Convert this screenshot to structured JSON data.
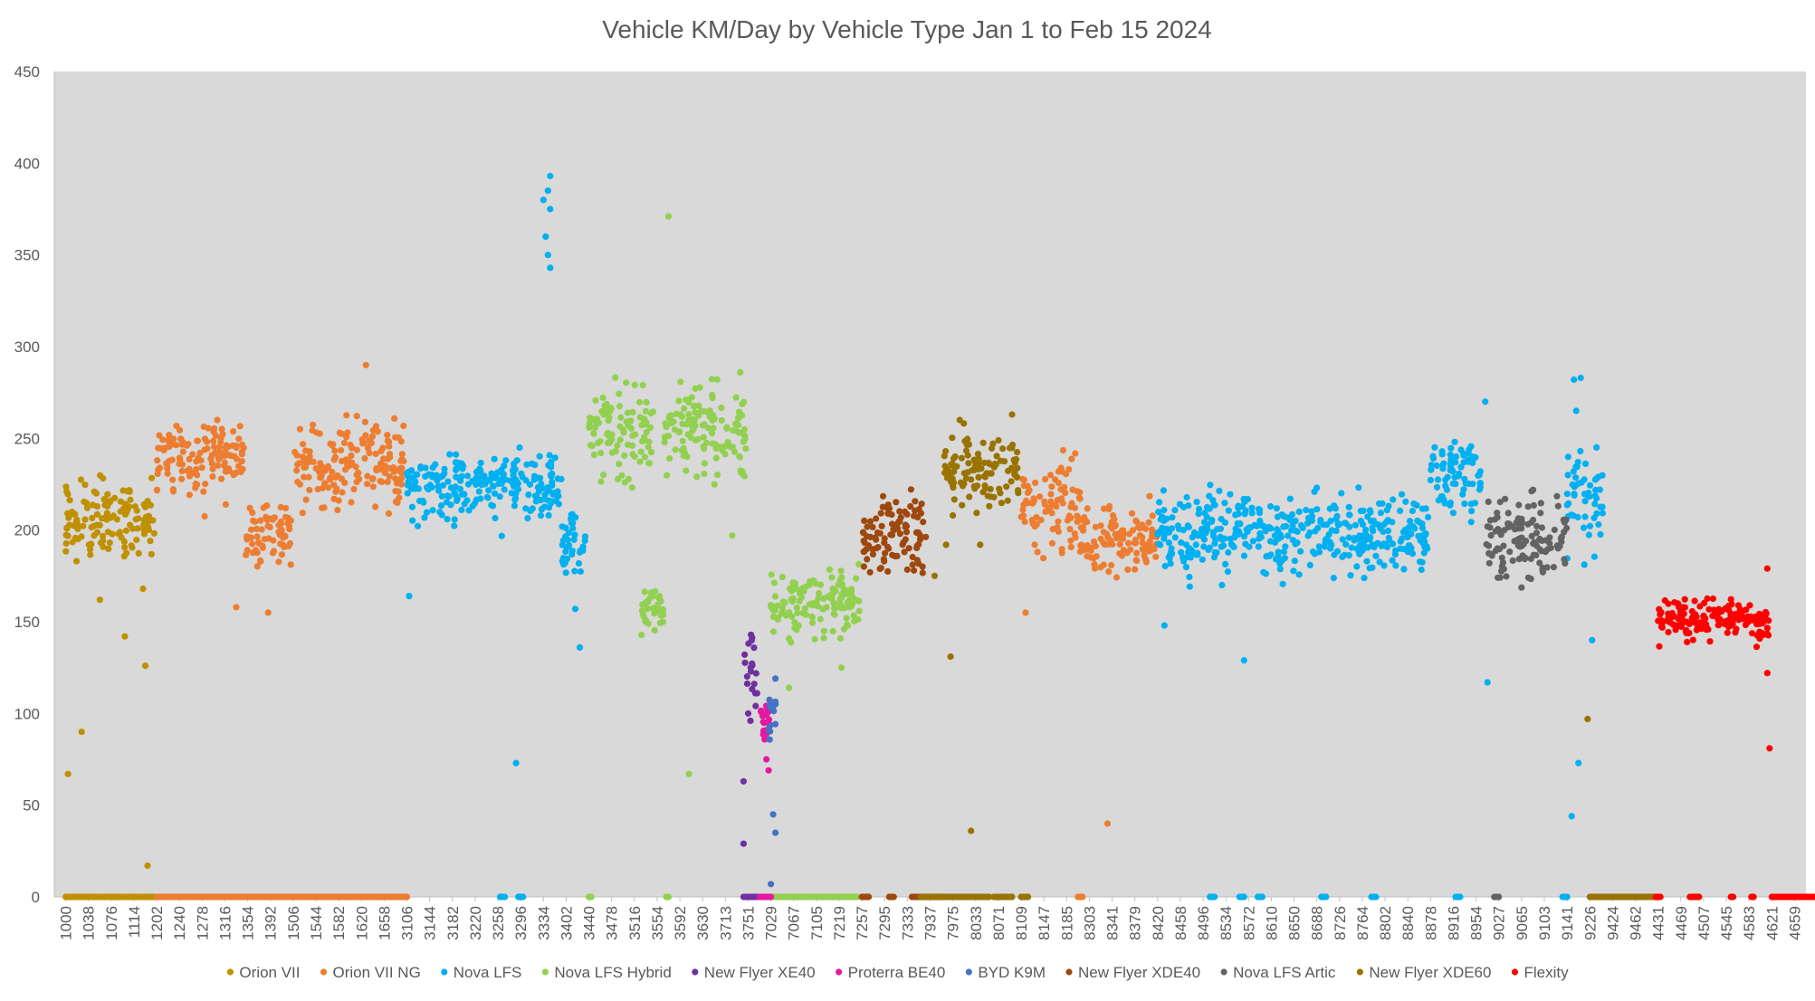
{
  "chart_data": {
    "type": "scatter",
    "title": "Vehicle KM/Day by Vehicle Type Jan 1 to Feb 15 2024",
    "xlabel": "",
    "ylabel": "",
    "ylim": [
      0,
      450
    ],
    "yticks": [
      0,
      50,
      100,
      150,
      200,
      250,
      300,
      350,
      400,
      450
    ],
    "plot_background": "#d9d9d9",
    "grid": false,
    "legend_position": "bottom",
    "x_categories": [
      "1000",
      "1038",
      "1076",
      "1114",
      "1202",
      "1240",
      "1278",
      "1316",
      "1354",
      "1392",
      "1506",
      "1544",
      "1582",
      "1620",
      "1658",
      "3106",
      "3144",
      "3182",
      "3220",
      "3258",
      "3296",
      "3334",
      "3402",
      "3440",
      "3478",
      "3516",
      "3554",
      "3592",
      "3630",
      "3713",
      "3751",
      "7029",
      "7067",
      "7105",
      "7219",
      "7257",
      "7295",
      "7333",
      "7937",
      "7975",
      "8033",
      "8071",
      "8109",
      "8147",
      "8185",
      "8303",
      "8341",
      "8379",
      "8420",
      "8458",
      "8496",
      "8534",
      "8572",
      "8610",
      "8650",
      "8688",
      "8726",
      "8764",
      "8802",
      "8840",
      "8878",
      "8916",
      "8954",
      "9027",
      "9065",
      "9103",
      "9141",
      "9226",
      "9424",
      "9462",
      "4431",
      "4469",
      "4507",
      "4545",
      "4583",
      "4621",
      "4659"
    ],
    "series": [
      {
        "name": "Orion VII",
        "color": "#bf9000",
        "x_range": [
          0,
          3.9
        ],
        "center": 205,
        "spread": 18,
        "extra_points": [
          [
            0.1,
            67
          ],
          [
            0.7,
            90
          ],
          [
            3.6,
            17
          ],
          [
            3.5,
            126
          ],
          [
            2.6,
            142
          ],
          [
            1.5,
            162
          ],
          [
            3.4,
            168
          ]
        ],
        "zero_ranges": [
          [
            0,
            3.9
          ]
        ]
      },
      {
        "name": "Orion VII NG",
        "color": "#ed7d31",
        "clusters": [
          {
            "x_range": [
              4.0,
              7.9
            ],
            "center": 240,
            "spread": 18
          },
          {
            "x_range": [
              7.9,
              9.9
            ],
            "center": 198,
            "spread": 16
          },
          {
            "x_range": [
              9.9,
              14.9
            ],
            "center": 235,
            "spread": 20
          },
          {
            "x_range": [
              42.0,
              44.6
            ],
            "center": 215,
            "spread": 20
          },
          {
            "x_range": [
              44.6,
              48.0
            ],
            "center": 195,
            "spread": 15
          }
        ],
        "extra_points": [
          [
            13.2,
            290
          ],
          [
            7.5,
            158
          ],
          [
            8.9,
            155
          ],
          [
            45.8,
            40
          ],
          [
            42.2,
            155
          ]
        ],
        "zero_ranges": [
          [
            4.0,
            15.0
          ],
          [
            44.5,
            44.7
          ]
        ]
      },
      {
        "name": "Nova LFS",
        "color": "#00b0f0",
        "clusters": [
          {
            "x_range": [
              15.0,
              21.8
            ],
            "center": 225,
            "spread": 15
          },
          {
            "x_range": [
              21.8,
              22.9
            ],
            "center": 195,
            "spread": 15
          },
          {
            "x_range": [
              48.0,
              59.9
            ],
            "center": 198,
            "spread": 18
          },
          {
            "x_range": [
              60.0,
              62.2
            ],
            "center": 232,
            "spread": 18
          },
          {
            "x_range": [
              66.0,
              67.6
            ],
            "center": 215,
            "spread": 25
          }
        ],
        "extra_points": [
          [
            21.3,
            393
          ],
          [
            21.2,
            385
          ],
          [
            21.3,
            375
          ],
          [
            21.1,
            360
          ],
          [
            21.2,
            350
          ],
          [
            21.3,
            343
          ],
          [
            21.0,
            380
          ],
          [
            15.1,
            164
          ],
          [
            19.8,
            73
          ],
          [
            22.6,
            136
          ],
          [
            22.4,
            157
          ],
          [
            66.3,
            282
          ],
          [
            66.6,
            283
          ],
          [
            66.4,
            265
          ],
          [
            66.5,
            73
          ],
          [
            66.2,
            44
          ],
          [
            62.5,
            117
          ],
          [
            62.4,
            270
          ],
          [
            67.1,
            140
          ],
          [
            48.3,
            148
          ],
          [
            51.8,
            129
          ]
        ],
        "zero_ranges": [
          [
            19.1,
            19.3
          ],
          [
            19.9,
            20.1
          ],
          [
            50.3,
            50.5
          ],
          [
            51.6,
            51.8
          ],
          [
            52.4,
            52.6
          ],
          [
            55.2,
            55.4
          ],
          [
            57.4,
            57.6
          ],
          [
            61.1,
            61.3
          ],
          [
            65.8,
            66.0
          ]
        ]
      },
      {
        "name": "Nova LFS Hybrid",
        "color": "#92d050",
        "clusters": [
          {
            "x_range": [
              23.0,
              25.9
            ],
            "center": 255,
            "spread": 22
          },
          {
            "x_range": [
              25.3,
              26.3
            ],
            "center": 158,
            "spread": 10
          },
          {
            "x_range": [
              26.2,
              29.9
            ],
            "center": 255,
            "spread": 20
          },
          {
            "x_range": [
              31.0,
              34.9
            ],
            "center": 160,
            "spread": 15
          }
        ],
        "extra_points": [
          [
            26.5,
            371
          ],
          [
            27.4,
            67
          ],
          [
            29.3,
            197
          ],
          [
            31.8,
            114
          ],
          [
            34.1,
            125
          ]
        ],
        "zero_ranges": [
          [
            23.0,
            23.1
          ],
          [
            26.4,
            26.5
          ],
          [
            31.0,
            34.8
          ]
        ]
      },
      {
        "name": "New Flyer XE40",
        "color": "#7030a0",
        "clusters": [
          {
            "x_range": [
              29.8,
              30.4
            ],
            "center": 125,
            "spread": 18
          }
        ],
        "extra_points": [
          [
            29.8,
            29
          ],
          [
            29.8,
            63
          ],
          [
            30.1,
            96
          ]
        ],
        "zero_ranges": [
          [
            29.8,
            30.4
          ]
        ]
      },
      {
        "name": "Proterra BE40",
        "color": "#e4199f",
        "clusters": [
          {
            "x_range": [
              30.5,
              31.0
            ],
            "center": 95,
            "spread": 9
          }
        ],
        "extra_points": [
          [
            30.8,
            75
          ],
          [
            30.9,
            69
          ]
        ],
        "zero_ranges": [
          [
            30.5,
            31.0
          ]
        ]
      },
      {
        "name": "BYD K9M",
        "color": "#4472c4",
        "clusters": [
          {
            "x_range": [
              30.9,
              31.3
            ],
            "center": 100,
            "spread": 12
          }
        ],
        "extra_points": [
          [
            31.1,
            45
          ],
          [
            31.2,
            35
          ],
          [
            31.0,
            7
          ],
          [
            31.2,
            119
          ]
        ],
        "zero_ranges": []
      },
      {
        "name": "New Flyer XDE40",
        "color": "#9e480e",
        "clusters": [
          {
            "x_range": [
              35.0,
              37.9
            ],
            "center": 198,
            "spread": 16
          }
        ],
        "extra_points": [],
        "zero_ranges": [
          [
            35.0,
            35.3
          ],
          [
            36.2,
            36.4
          ],
          [
            37.2,
            38.6
          ]
        ]
      },
      {
        "name": "Nova LFS Artic",
        "color": "#636363",
        "clusters": [
          {
            "x_range": [
              62.4,
              66.0
            ],
            "center": 195,
            "spread": 22
          }
        ],
        "extra_points": [],
        "zero_ranges": [
          [
            62.8,
            63.0
          ]
        ]
      },
      {
        "name": "New Flyer XDE60",
        "color": "#997300",
        "clusters": [
          {
            "x_range": [
              38.6,
              41.9
            ],
            "center": 233,
            "spread": 15
          }
        ],
        "extra_points": [
          [
            38.2,
            175
          ],
          [
            38.7,
            192
          ],
          [
            38.9,
            131
          ],
          [
            39.0,
            208
          ],
          [
            39.8,
            36
          ],
          [
            40.2,
            192
          ],
          [
            39.3,
            260
          ],
          [
            41.6,
            263
          ],
          [
            66.9,
            97
          ],
          [
            40.6,
            213
          ]
        ],
        "zero_ranges": [
          [
            37.6,
            40.6
          ],
          [
            40.8,
            41.6
          ],
          [
            42.0,
            42.3
          ],
          [
            67.0,
            69.9
          ]
        ]
      },
      {
        "name": "Flexity",
        "color": "#ff0000",
        "clusters": [
          {
            "x_range": [
              70.0,
              74.9
            ],
            "center": 152,
            "spread": 9
          }
        ],
        "extra_points": [
          [
            74.8,
            179
          ],
          [
            74.8,
            122
          ],
          [
            74.9,
            81
          ]
        ],
        "zero_ranges": [
          [
            69.9,
            70.1
          ],
          [
            71.4,
            71.8
          ],
          [
            73.2,
            73.3
          ],
          [
            74.1,
            74.2
          ],
          [
            75.0,
            76.9
          ]
        ]
      }
    ]
  }
}
